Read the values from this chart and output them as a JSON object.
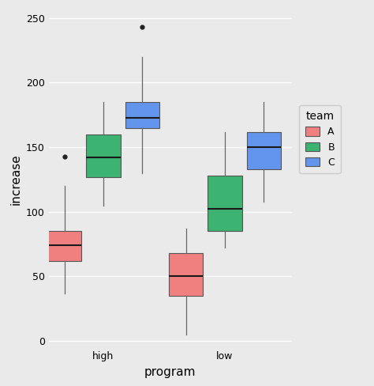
{
  "title": "",
  "xlabel": "program",
  "ylabel": "increase",
  "ylim": [
    -5,
    255
  ],
  "yticks": [
    0,
    50,
    100,
    150,
    200,
    250
  ],
  "ytick_labels": [
    "0",
    "50",
    "100",
    "150",
    "200",
    "250"
  ],
  "groups": [
    "high",
    "low"
  ],
  "teams": [
    "A",
    "B",
    "C"
  ],
  "colors": {
    "A": "#F08080",
    "B": "#3CB371",
    "C": "#6495ED"
  },
  "edge_color": "#555555",
  "median_color": "#1a1a1a",
  "whisker_color": "#666666",
  "flier_color": "#222222",
  "box_data": {
    "high": {
      "A": {
        "whislo": 37,
        "q1": 62,
        "med": 74,
        "q3": 85,
        "whishi": 120,
        "fliers": [
          143
        ]
      },
      "B": {
        "whislo": 105,
        "q1": 127,
        "med": 142,
        "q3": 160,
        "whishi": 185,
        "fliers": []
      },
      "C": {
        "whislo": 130,
        "q1": 165,
        "med": 173,
        "q3": 185,
        "whishi": 220,
        "fliers": [
          243
        ]
      }
    },
    "low": {
      "A": {
        "whislo": 5,
        "q1": 35,
        "med": 50,
        "q3": 68,
        "whishi": 87,
        "fliers": []
      },
      "B": {
        "whislo": 72,
        "q1": 85,
        "med": 102,
        "q3": 128,
        "whishi": 162,
        "fliers": []
      },
      "C": {
        "whislo": 108,
        "q1": 133,
        "med": 150,
        "q3": 162,
        "whishi": 185,
        "fliers": []
      }
    }
  },
  "background_color": "#EAEAEA",
  "grid_color": "#FFFFFF",
  "box_width": 0.28,
  "group_positions": [
    1.0,
    2.0
  ],
  "offsets": [
    -0.32,
    0.0,
    0.32
  ],
  "legend_title": "team",
  "legend_title_fontsize": 10,
  "legend_fontsize": 9,
  "axis_label_fontsize": 11,
  "tick_fontsize": 9
}
